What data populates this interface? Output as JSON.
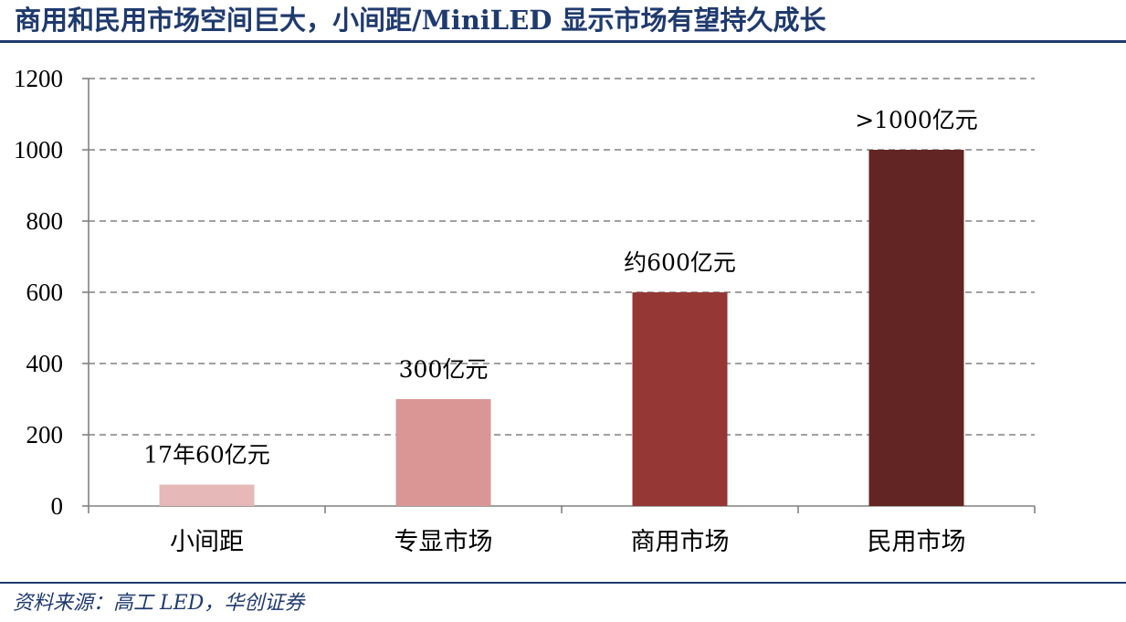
{
  "title": "商用和民用市场空间巨大，小间距/MiniLED 显示市场有望持久成长",
  "source": "资料来源：高工 LED，华创证券",
  "colors": {
    "title": "#1f3a6e",
    "grid": "#808080",
    "axis": "#808080"
  },
  "chart_data": {
    "type": "bar",
    "categories": [
      "小间距",
      "专显市场",
      "商用市场",
      "民用市场"
    ],
    "values": [
      60,
      300,
      600,
      1000
    ],
    "data_labels": [
      "17年60亿元",
      "300亿元",
      "约600亿元",
      ">1000亿元"
    ],
    "bar_colors": [
      "#e6b8b7",
      "#d99694",
      "#953735",
      "#632523"
    ],
    "yticks": [
      0,
      200,
      400,
      600,
      800,
      1000,
      1200
    ],
    "ylim": [
      0,
      1200
    ],
    "grid": true,
    "legend": false
  }
}
